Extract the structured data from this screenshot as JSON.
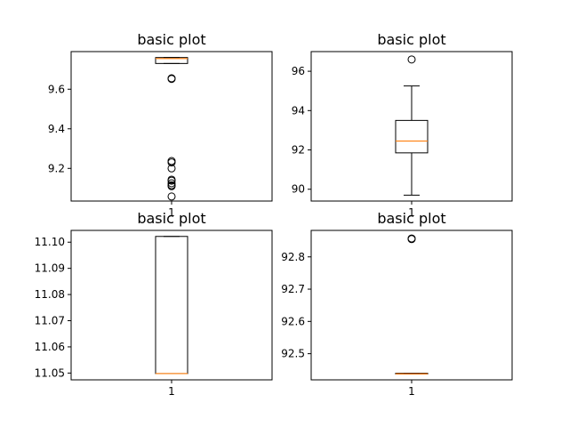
{
  "chart_data": [
    {
      "type": "box",
      "title": "basic plot",
      "xlabel": "",
      "ylabel": "",
      "categories": [
        "1"
      ],
      "ylim": [
        9.035,
        9.79
      ],
      "yticks": [
        9.2,
        9.4,
        9.6
      ],
      "ytick_labels": [
        "9.2",
        "9.4",
        "9.6"
      ],
      "box": {
        "whisker_low": 9.73,
        "q1": 9.73,
        "median": 9.755,
        "q3": 9.76,
        "whisker_high": 9.76
      },
      "outliers": [
        9.655,
        9.652,
        9.237,
        9.23,
        9.2,
        9.143,
        9.138,
        9.125,
        9.115,
        9.11,
        9.058
      ]
    },
    {
      "type": "box",
      "title": "basic plot",
      "xlabel": "",
      "ylabel": "",
      "categories": [
        "1"
      ],
      "ylim": [
        89.4,
        97.0
      ],
      "yticks": [
        90,
        92,
        94,
        96
      ],
      "ytick_labels": [
        "90",
        "92",
        "94",
        "96"
      ],
      "box": {
        "whisker_low": 89.7,
        "q1": 91.85,
        "median": 92.45,
        "q3": 93.5,
        "whisker_high": 95.25
      },
      "outliers": [
        96.6
      ]
    },
    {
      "type": "box",
      "title": "basic plot",
      "xlabel": "",
      "ylabel": "",
      "categories": [
        "1"
      ],
      "ylim": [
        11.0474,
        11.1045
      ],
      "yticks": [
        11.05,
        11.06,
        11.07,
        11.08,
        11.09,
        11.1
      ],
      "ytick_labels": [
        "11.05",
        "11.06",
        "11.07",
        "11.08",
        "11.09",
        "11.10"
      ],
      "box": {
        "whisker_low": 11.0498,
        "q1": 11.0498,
        "median": 11.0498,
        "q3": 11.1022,
        "whisker_high": 11.1022
      },
      "outliers": []
    },
    {
      "type": "box",
      "title": "basic plot",
      "xlabel": "",
      "ylabel": "",
      "categories": [
        "1"
      ],
      "ylim": [
        92.419,
        92.882
      ],
      "yticks": [
        92.5,
        92.6,
        92.7,
        92.8
      ],
      "ytick_labels": [
        "92.5",
        "92.6",
        "92.7",
        "92.8"
      ],
      "box": {
        "whisker_low": 92.4375,
        "q1": 92.4375,
        "median": 92.4375,
        "q3": 92.4395,
        "whisker_high": 92.4395
      },
      "outliers": [
        92.857,
        92.855
      ]
    }
  ]
}
